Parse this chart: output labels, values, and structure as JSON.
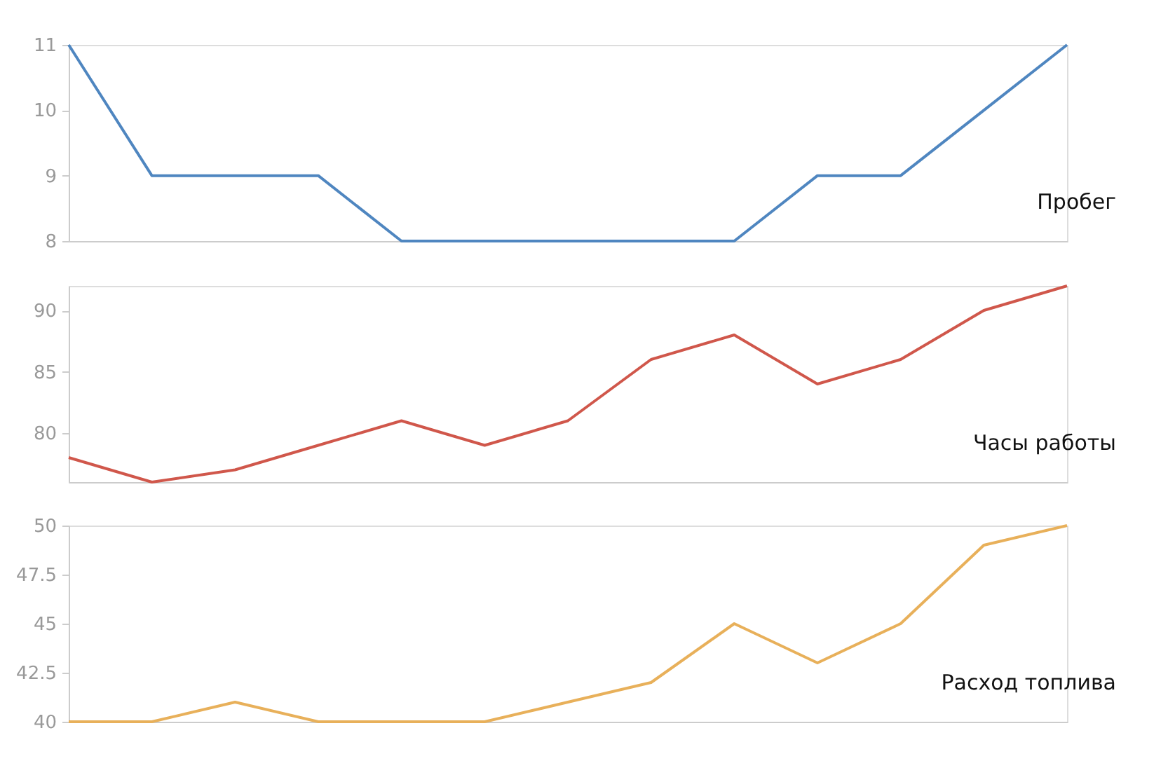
{
  "chart_data": [
    {
      "type": "line",
      "categories": [
        null,
        null,
        null,
        null,
        null,
        null,
        null,
        null,
        null,
        null,
        null,
        null,
        null
      ],
      "ylim": [
        8,
        11
      ],
      "yticks": [
        8,
        9,
        10,
        11
      ],
      "tick_labels": "y",
      "grid": false,
      "series": [
        {
          "name": "Пробег",
          "color": "#4f86c0",
          "values": [
            11,
            9,
            9,
            9,
            8,
            8,
            8,
            8,
            8,
            9,
            9,
            10,
            11
          ]
        }
      ]
    },
    {
      "type": "line",
      "categories": [
        null,
        null,
        null,
        null,
        null,
        null,
        null,
        null,
        null,
        null,
        null,
        null,
        null
      ],
      "ylim": [
        76,
        92
      ],
      "yticks": [
        80,
        85,
        90
      ],
      "tick_labels": "y",
      "grid": false,
      "series": [
        {
          "name": "Часы работы",
          "color": "#d0574b",
          "values": [
            78,
            76,
            77,
            79,
            81,
            79,
            81,
            86,
            88,
            84,
            86,
            90,
            92
          ]
        }
      ]
    },
    {
      "type": "line",
      "categories": [
        null,
        null,
        null,
        null,
        null,
        null,
        null,
        null,
        null,
        null,
        null,
        null,
        null
      ],
      "ylim": [
        40,
        50
      ],
      "yticks": [
        40,
        42.5,
        45,
        47.5,
        50
      ],
      "tick_labels": "y",
      "grid": false,
      "series": [
        {
          "name": "Расход топлива",
          "color": "#e8b05a",
          "values": [
            40,
            40,
            41,
            40,
            40,
            40,
            41,
            42,
            45,
            43,
            45,
            49,
            50
          ]
        }
      ]
    }
  ]
}
